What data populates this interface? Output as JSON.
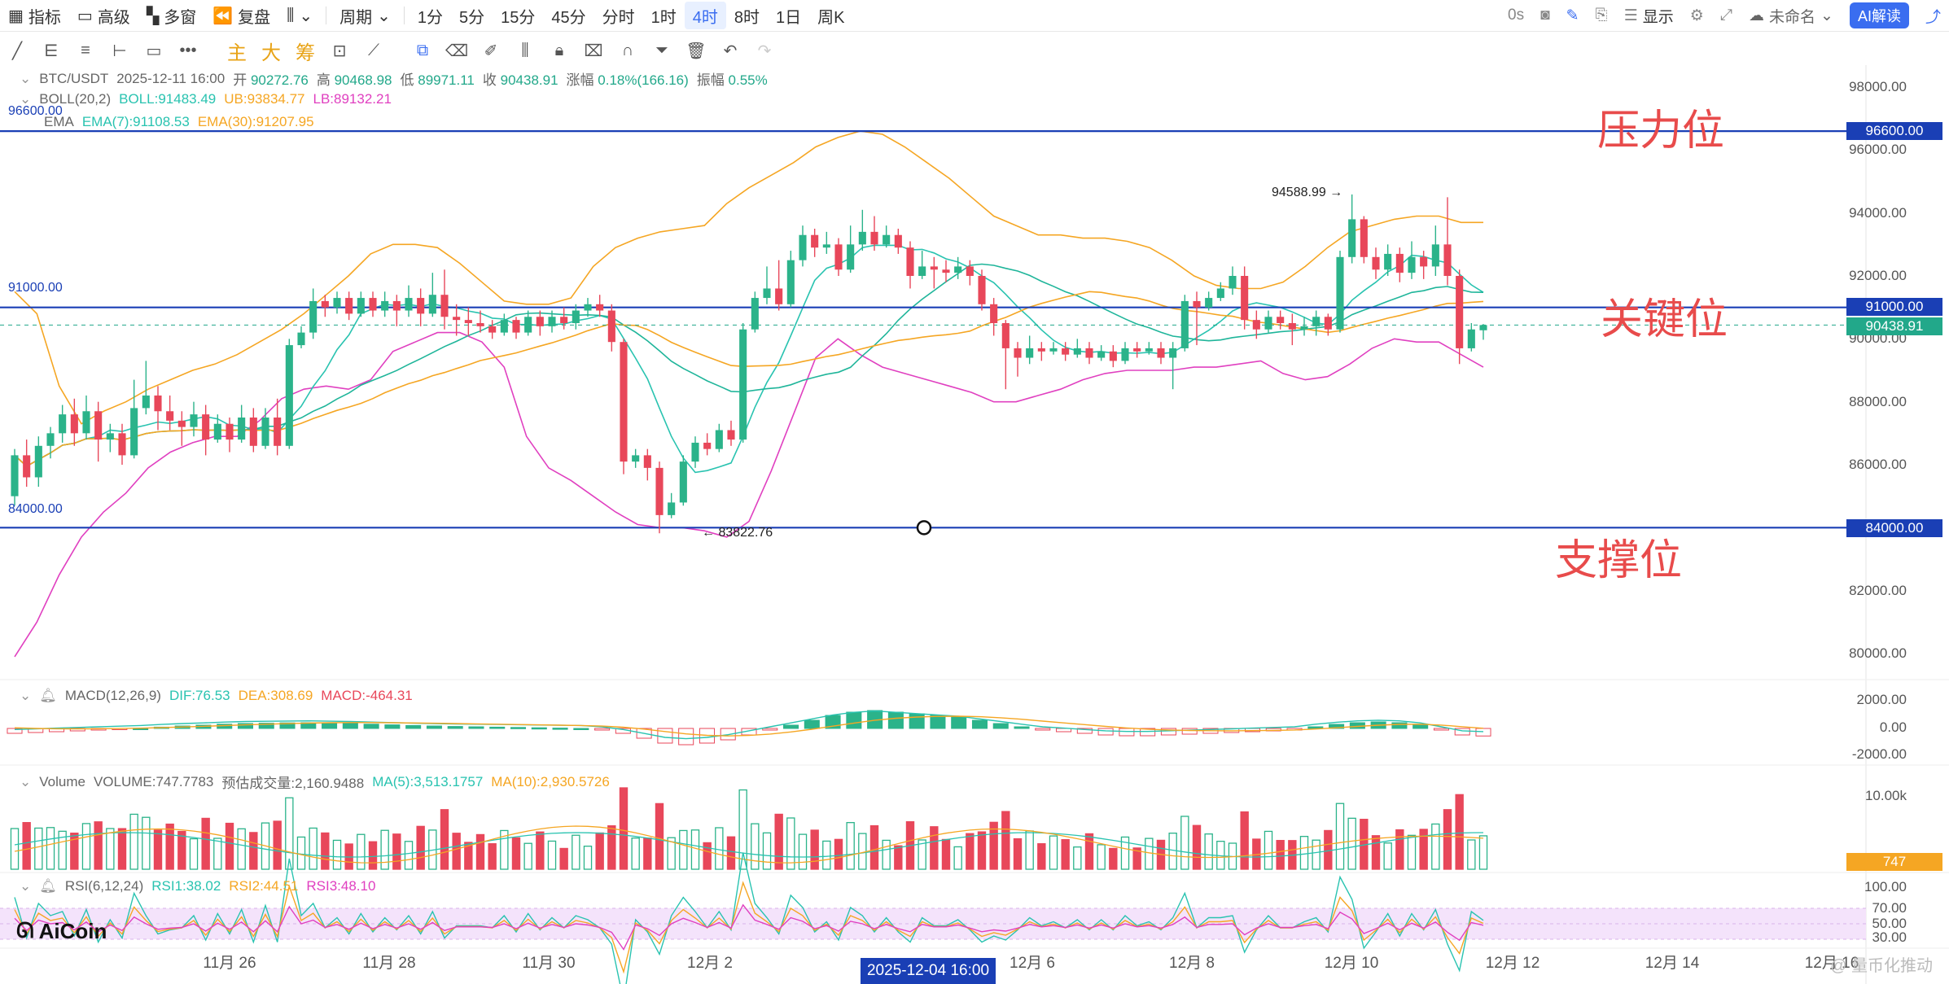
{
  "toolbar": {
    "indicator": "指标",
    "advanced": "高级",
    "multiwindow": "多窗",
    "replay": "复盘",
    "period": "周期",
    "intervals": [
      "1分",
      "5分",
      "15分",
      "45分",
      "分时",
      "1时",
      "4时",
      "8时",
      "1日",
      "周K"
    ],
    "active_interval": "4时",
    "timer": "0s",
    "display": "显示",
    "unnamed": "未命名",
    "ai": "AI解读"
  },
  "drawbar": {
    "main": "主",
    "big": "大",
    "chips": "筹"
  },
  "symbol_line": {
    "pair": "BTC/USDT",
    "time": "2025-12-11 16:00",
    "open_label": "开",
    "open": "90272.76",
    "high_label": "高",
    "high": "90468.98",
    "low_label": "低",
    "low": "89971.11",
    "close_label": "收",
    "close": "90438.91",
    "change_label": "涨幅",
    "change": "0.18%(166.16)",
    "amp_label": "振幅",
    "amp": "0.55%"
  },
  "boll": {
    "name": "BOLL(20,2)",
    "boll": "BOLL:91483.49",
    "ub": "UB:93834.77",
    "lb": "LB:89132.21"
  },
  "ema": {
    "name": "EMA",
    "ema7": "EMA(7):91108.53",
    "ema30": "EMA(30):91207.95"
  },
  "macd": {
    "name": "MACD(12,26,9)",
    "dif": "DIF:76.53",
    "dea": "DEA:308.69",
    "macd": "MACD:-464.31"
  },
  "volume": {
    "name": "Volume",
    "vol": "VOLUME:747.7783",
    "est": "预估成交量:2,160.9488",
    "ma5": "MA(5):3,513.1757",
    "ma10": "MA(10):2,930.5726"
  },
  "rsi": {
    "name": "RSI(6,12,24)",
    "r1": "RSI1:38.02",
    "r2": "RSI2:44.51",
    "r3": "RSI3:48.10"
  },
  "price_axis": [
    "98000.00",
    "96000.00",
    "94000.00",
    "92000.00",
    "90000.00",
    "88000.00",
    "86000.00",
    "84000.00",
    "82000.00",
    "80000.00"
  ],
  "price_tags": {
    "p96600": "96600.00",
    "p91000": "91000.00",
    "p84000": "84000.00",
    "current": "90438.91"
  },
  "line_labels": {
    "l96600": "96600.00",
    "l91000": "91000.00",
    "l84000": "84000.00"
  },
  "annotations": {
    "resistance": "压力位",
    "key": "关键位",
    "support": "支撑位"
  },
  "high_marker": "94588.99",
  "low_marker": "83822.76",
  "macd_axis": [
    "2000.00",
    "0.00",
    "-2000.00"
  ],
  "vol_axis": {
    "top": "10.00k",
    "tag": "747"
  },
  "rsi_axis": [
    "100.00",
    "70.00",
    "50.00",
    "30.00"
  ],
  "x_axis": [
    "11月 26",
    "11月 28",
    "11月 30",
    "12月 2",
    "12月 6",
    "12月 8",
    "12月 10",
    "12月 12",
    "12月 14",
    "12月 16"
  ],
  "crosshair_time": "2025-12-04 16:00",
  "logo": "AiCoin",
  "watermark": "@ 量币化推动",
  "colors": {
    "up": "#2bb38a",
    "down": "#e8475a",
    "line": "#1a3fb5",
    "ub": "#f5a623",
    "lb": "#e040c0",
    "mid": "#29c3b0"
  },
  "chart_data": {
    "type": "candlestick",
    "interval": "4h",
    "price_range": [
      79500,
      98800
    ],
    "levels": [
      96600,
      91000,
      84000
    ],
    "candles": [
      [
        85000,
        86300,
        84700,
        86500
      ],
      [
        86300,
        85600,
        85300,
        86800
      ],
      [
        85600,
        86600,
        85300,
        86900
      ],
      [
        86600,
        87000,
        86200,
        87200
      ],
      [
        87000,
        87600,
        86700,
        87900
      ],
      [
        87600,
        87000,
        86600,
        88100
      ],
      [
        87000,
        87700,
        86800,
        88200
      ],
      [
        87700,
        86800,
        86100,
        88000
      ],
      [
        86800,
        87000,
        86400,
        87300
      ],
      [
        87000,
        86300,
        86000,
        87300
      ],
      [
        86300,
        87800,
        86200,
        88700
      ],
      [
        87800,
        88200,
        87600,
        89300
      ],
      [
        88200,
        87700,
        87100,
        88500
      ],
      [
        87700,
        87400,
        87100,
        88200
      ],
      [
        87400,
        87200,
        86600,
        87700
      ],
      [
        87200,
        87600,
        86900,
        88000
      ],
      [
        87600,
        86800,
        86300,
        87900
      ],
      [
        86800,
        87300,
        86700,
        87600
      ],
      [
        87300,
        86800,
        86400,
        87500
      ],
      [
        86800,
        87500,
        86700,
        87900
      ],
      [
        87500,
        86600,
        86400,
        87800
      ],
      [
        86600,
        87500,
        86500,
        87800
      ],
      [
        87500,
        86600,
        86300,
        88100
      ],
      [
        86600,
        89800,
        86500,
        90000
      ],
      [
        89800,
        90200,
        89700,
        90400
      ],
      [
        90200,
        91200,
        90000,
        91600
      ],
      [
        91200,
        91000,
        90700,
        91400
      ],
      [
        91000,
        91300,
        90800,
        91500
      ],
      [
        91300,
        90800,
        90600,
        91500
      ],
      [
        90800,
        91300,
        90700,
        91500
      ],
      [
        91300,
        90900,
        90700,
        91500
      ],
      [
        90900,
        91200,
        90700,
        91500
      ],
      [
        91200,
        90900,
        90400,
        91400
      ],
      [
        90900,
        91300,
        90700,
        91700
      ],
      [
        91300,
        90800,
        90400,
        91600
      ],
      [
        90800,
        91400,
        90700,
        92100
      ],
      [
        91400,
        90700,
        90300,
        92200
      ],
      [
        90700,
        90600,
        90100,
        91100
      ],
      [
        90600,
        90500,
        90100,
        91000
      ],
      [
        90500,
        90400,
        90200,
        90900
      ],
      [
        90400,
        90200,
        90000,
        90600
      ],
      [
        90200,
        90600,
        90100,
        90800
      ],
      [
        90600,
        90200,
        90000,
        90700
      ],
      [
        90200,
        90700,
        90100,
        90900
      ],
      [
        90700,
        90400,
        90100,
        90900
      ],
      [
        90400,
        90700,
        90200,
        90900
      ],
      [
        90700,
        90500,
        90300,
        91000
      ],
      [
        90500,
        90900,
        90300,
        91100
      ],
      [
        90900,
        91100,
        90700,
        91300
      ],
      [
        91100,
        90900,
        90700,
        91400
      ],
      [
        90900,
        89900,
        89600,
        91100
      ],
      [
        89900,
        86100,
        85700,
        90000
      ],
      [
        86100,
        86300,
        85900,
        86500
      ],
      [
        86300,
        85900,
        85500,
        86500
      ],
      [
        85900,
        84400,
        83822,
        86100
      ],
      [
        84400,
        84800,
        84300,
        85100
      ],
      [
        84800,
        86100,
        84700,
        86300
      ],
      [
        86100,
        86700,
        85900,
        86900
      ],
      [
        86700,
        86500,
        86300,
        87000
      ],
      [
        86500,
        87100,
        86400,
        87300
      ],
      [
        87100,
        86800,
        86600,
        87400
      ],
      [
        86800,
        90300,
        86700,
        90500
      ],
      [
        90300,
        91300,
        90200,
        91500
      ],
      [
        91300,
        91600,
        91100,
        92300
      ],
      [
        91600,
        91100,
        90900,
        92500
      ],
      [
        91100,
        92500,
        91000,
        92800
      ],
      [
        92500,
        93300,
        92300,
        93600
      ],
      [
        93300,
        92900,
        92600,
        93500
      ],
      [
        92900,
        93000,
        92700,
        93400
      ],
      [
        93000,
        92200,
        92000,
        93200
      ],
      [
        92200,
        93000,
        92100,
        93600
      ],
      [
        93000,
        93400,
        92800,
        94100
      ],
      [
        93400,
        93000,
        92800,
        93900
      ],
      [
        93000,
        93300,
        92900,
        93600
      ],
      [
        93300,
        92900,
        92700,
        93500
      ],
      [
        92900,
        92000,
        91600,
        93100
      ],
      [
        92000,
        92300,
        91900,
        92800
      ],
      [
        92300,
        92200,
        91600,
        92600
      ],
      [
        92200,
        92100,
        91800,
        92500
      ],
      [
        92100,
        92300,
        91900,
        92600
      ],
      [
        92300,
        92000,
        91700,
        92500
      ],
      [
        92000,
        91100,
        90900,
        92200
      ],
      [
        91100,
        90500,
        90100,
        91300
      ],
      [
        90500,
        89700,
        88400,
        90600
      ],
      [
        89700,
        89400,
        88800,
        89900
      ],
      [
        89400,
        89700,
        89200,
        90100
      ],
      [
        89700,
        89600,
        89300,
        89900
      ],
      [
        89600,
        89700,
        89500,
        89900
      ],
      [
        89700,
        89500,
        89300,
        89900
      ],
      [
        89500,
        89700,
        89400,
        90000
      ],
      [
        89700,
        89400,
        89200,
        89900
      ],
      [
        89400,
        89600,
        89300,
        89800
      ],
      [
        89600,
        89300,
        89100,
        89800
      ],
      [
        89300,
        89700,
        89200,
        89900
      ],
      [
        89700,
        89600,
        89400,
        89900
      ],
      [
        89600,
        89700,
        89500,
        89900
      ],
      [
        89700,
        89400,
        89200,
        89900
      ],
      [
        89400,
        89700,
        88400,
        89900
      ],
      [
        89700,
        91200,
        89600,
        91400
      ],
      [
        91200,
        91000,
        89800,
        91500
      ],
      [
        91000,
        91300,
        90900,
        91500
      ],
      [
        91300,
        91600,
        91200,
        91800
      ],
      [
        91600,
        92000,
        91400,
        92300
      ],
      [
        92000,
        90600,
        90300,
        92300
      ],
      [
        90600,
        90300,
        90000,
        90900
      ],
      [
        90300,
        90700,
        90200,
        90900
      ],
      [
        90700,
        90500,
        90300,
        90900
      ],
      [
        90500,
        90300,
        89800,
        90800
      ],
      [
        90300,
        90400,
        90100,
        90700
      ],
      [
        90400,
        90700,
        90100,
        90900
      ],
      [
        90700,
        90300,
        90100,
        90800
      ],
      [
        90300,
        92600,
        90200,
        92800
      ],
      [
        92600,
        93800,
        92400,
        94589
      ],
      [
        93800,
        92600,
        92400,
        93900
      ],
      [
        92600,
        92200,
        91900,
        92900
      ],
      [
        92200,
        92700,
        92000,
        93000
      ],
      [
        92700,
        92100,
        91800,
        92900
      ],
      [
        92100,
        92600,
        91900,
        93100
      ],
      [
        92600,
        92300,
        91900,
        92800
      ],
      [
        92300,
        93000,
        92000,
        93600
      ],
      [
        93000,
        92000,
        91700,
        94500
      ],
      [
        92000,
        89700,
        89200,
        92200
      ],
      [
        89700,
        90300,
        89600,
        90500
      ],
      [
        90272.76,
        90438.91,
        89971.11,
        90468.98
      ]
    ],
    "boll_ub": [
      91500,
      90800,
      88500,
      87300,
      87700,
      88000,
      88400,
      88700,
      89000,
      89200,
      89500,
      89900,
      90300,
      90800,
      91400,
      92000,
      92700,
      93000,
      93000,
      92900,
      92400,
      91800,
      91200,
      91100,
      91100,
      91300,
      92300,
      92900,
      93200,
      93400,
      93500,
      93600,
      94300,
      94800,
      95200,
      95600,
      96100,
      96400,
      96600,
      96500,
      96100,
      95600,
      95100,
      94500,
      93900,
      93600,
      93300,
      93300,
      93200,
      93200,
      93100,
      92900,
      92500,
      92000,
      91700,
      91600,
      91600,
      91800,
      92300,
      92900,
      93400,
      93600,
      93800,
      93900,
      93900,
      93700,
      93700
    ],
    "boll_lb": [
      79900,
      81000,
      82500,
      83700,
      84500,
      85100,
      85900,
      86400,
      86700,
      86900,
      86900,
      87400,
      88100,
      88400,
      88500,
      88400,
      88700,
      89600,
      89900,
      90200,
      90200,
      89900,
      89100,
      86900,
      85900,
      85500,
      85000,
      84500,
      84100,
      84000,
      84000,
      83900,
      83700,
      84200,
      85800,
      87600,
      89400,
      90000,
      89500,
      89100,
      88900,
      88700,
      88500,
      88300,
      88000,
      88000,
      88200,
      88400,
      88700,
      88900,
      89000,
      89000,
      89000,
      89100,
      89100,
      89200,
      89300,
      88900,
      88700,
      88800,
      89200,
      89700,
      90000,
      89900,
      89900,
      89500,
      89100
    ],
    "macd_hist": [
      -300,
      -250,
      -200,
      -150,
      -100,
      -50,
      0,
      80,
      150,
      200,
      260,
      300,
      320,
      340,
      350,
      330,
      300,
      260,
      220,
      180,
      150,
      120,
      100,
      80,
      60,
      40,
      20,
      0,
      -100,
      -300,
      -600,
      -900,
      -1000,
      -900,
      -700,
      -400,
      -100,
      200,
      500,
      800,
      1000,
      1100,
      1000,
      900,
      800,
      700,
      500,
      300,
      100,
      -100,
      -200,
      -300,
      -400,
      -450,
      -450,
      -400,
      -350,
      -300,
      -250,
      -200,
      -150,
      -100,
      100,
      250,
      350,
      400,
      350,
      200,
      -100,
      -400,
      -464
    ]
  }
}
